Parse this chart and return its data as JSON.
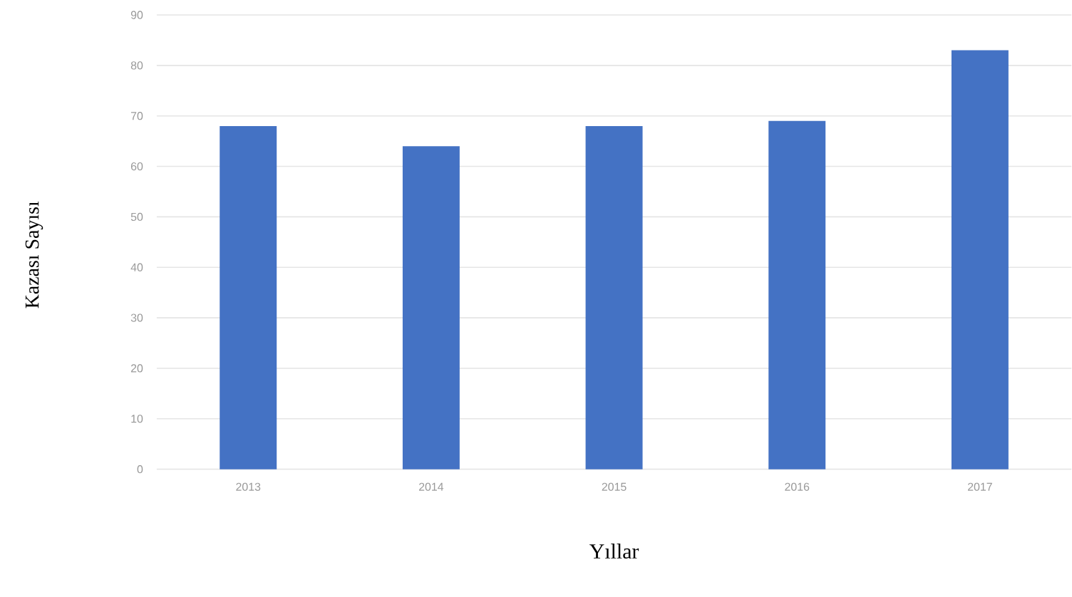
{
  "chart_data": {
    "type": "bar",
    "xlabel": "Yıllar",
    "ylabel": "Kazası Sayısı",
    "categories": [
      "2013",
      "2014",
      "2015",
      "2016",
      "2017"
    ],
    "values": [
      68,
      64,
      68,
      69,
      83
    ],
    "color": "#4472c4",
    "ylim": [
      0,
      90
    ],
    "yticks": [
      0,
      10,
      20,
      30,
      40,
      50,
      60,
      70,
      80,
      90
    ],
    "grid": "y"
  }
}
